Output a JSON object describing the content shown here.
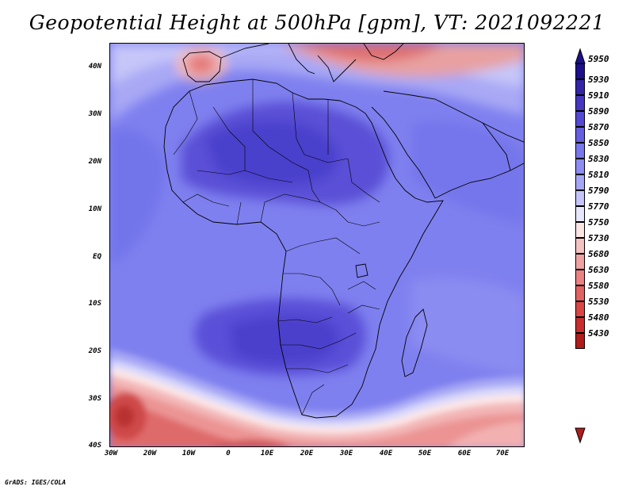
{
  "title": "Geopotential Height at 500hPa [gpm], VT: 2021092221",
  "footer": "GrADS: IGES/COLA",
  "axes": {
    "lat_labels": [
      "40N",
      "30N",
      "20N",
      "10N",
      "EQ",
      "10S",
      "20S",
      "30S",
      "40S"
    ],
    "lon_labels": [
      "30W",
      "20W",
      "10W",
      "0",
      "10E",
      "20E",
      "30E",
      "40E",
      "50E",
      "60E",
      "70E"
    ]
  },
  "colorbar": {
    "levels": [
      "5950",
      "5930",
      "5910",
      "5890",
      "5870",
      "5850",
      "5830",
      "5810",
      "5790",
      "5770",
      "5750",
      "5730",
      "5680",
      "5630",
      "5580",
      "5530",
      "5480",
      "5430"
    ],
    "colors": [
      "#1e0f8c",
      "#3324a8",
      "#4637c0",
      "#5548d2",
      "#6660e0",
      "#7877ec",
      "#8c8cf2",
      "#a6a6f6",
      "#c4c4fa",
      "#e6e6fc",
      "#fbe4e4",
      "#f5c2c2",
      "#f0a2a2",
      "#ea8282",
      "#e26262",
      "#d84646",
      "#c82e2e",
      "#b01c1c"
    ]
  }
}
